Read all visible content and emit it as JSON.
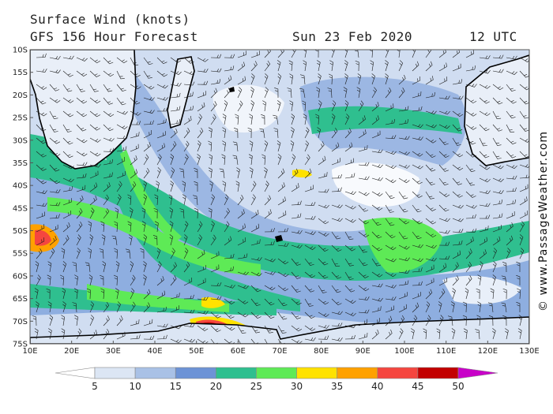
{
  "header": {
    "title": "Surface Wind (knots)",
    "subtitle": "GFS 156 Hour Forecast",
    "date": "Sun 23 Feb 2020",
    "time": "12 UTC"
  },
  "credit": "© www.PassageWeather.com",
  "map": {
    "lat_labels": [
      "10S",
      "15S",
      "20S",
      "25S",
      "30S",
      "35S",
      "40S",
      "45S",
      "50S",
      "55S",
      "60S",
      "65S",
      "70S",
      "75S"
    ],
    "lon_labels": [
      "10E",
      "20E",
      "30E",
      "40E",
      "50E",
      "60E",
      "70E",
      "80E",
      "90E",
      "100E",
      "110E",
      "120E",
      "130E"
    ],
    "lat_range": [
      -10,
      -75
    ],
    "lon_range": [
      10,
      130
    ]
  },
  "colorbar": {
    "ticks": [
      "5",
      "10",
      "15",
      "20",
      "25",
      "30",
      "35",
      "40",
      "45",
      "50"
    ],
    "colors": [
      "#ffffff",
      "#dce6f4",
      "#a9c1e6",
      "#6d93d6",
      "#2fbf8f",
      "#5eea56",
      "#ffe200",
      "#ffa100",
      "#f5463f",
      "#c20000",
      "#c800c8"
    ]
  }
}
